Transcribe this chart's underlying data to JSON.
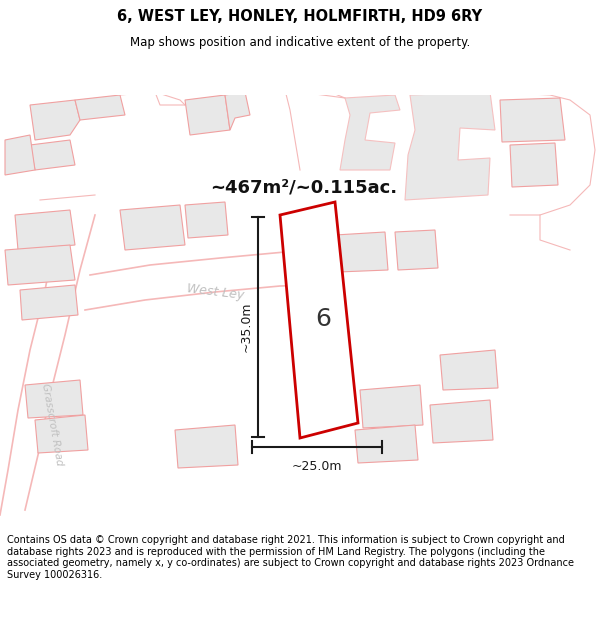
{
  "title": "6, WEST LEY, HONLEY, HOLMFIRTH, HD9 6RY",
  "subtitle": "Map shows position and indicative extent of the property.",
  "footer": "Contains OS data © Crown copyright and database right 2021. This information is subject to Crown copyright and database rights 2023 and is reproduced with the permission of HM Land Registry. The polygons (including the associated geometry, namely x, y co-ordinates) are subject to Crown copyright and database rights 2023 Ordnance Survey 100026316.",
  "area_label": "~467m²/~0.115ac.",
  "dim_vertical": "~35.0m",
  "dim_horizontal": "~25.0m",
  "property_number": "6",
  "street_label_1": "West Ley",
  "street_label_2": "Grasscroft Road",
  "bg_color": "#ffffff",
  "map_bg": "#f9f9f9",
  "building_fill": "#e8e8e8",
  "building_edge": "#f0a0a0",
  "plot_outline": "#f5c0c0",
  "road_outline": "#f5b8b8",
  "property_fill": "#ffffff",
  "property_edge": "#cc0000",
  "dim_color": "#1a1a1a",
  "street_text_color": "#c0c0c0",
  "title_fontsize": 10.5,
  "subtitle_fontsize": 8.5,
  "footer_fontsize": 7.0
}
